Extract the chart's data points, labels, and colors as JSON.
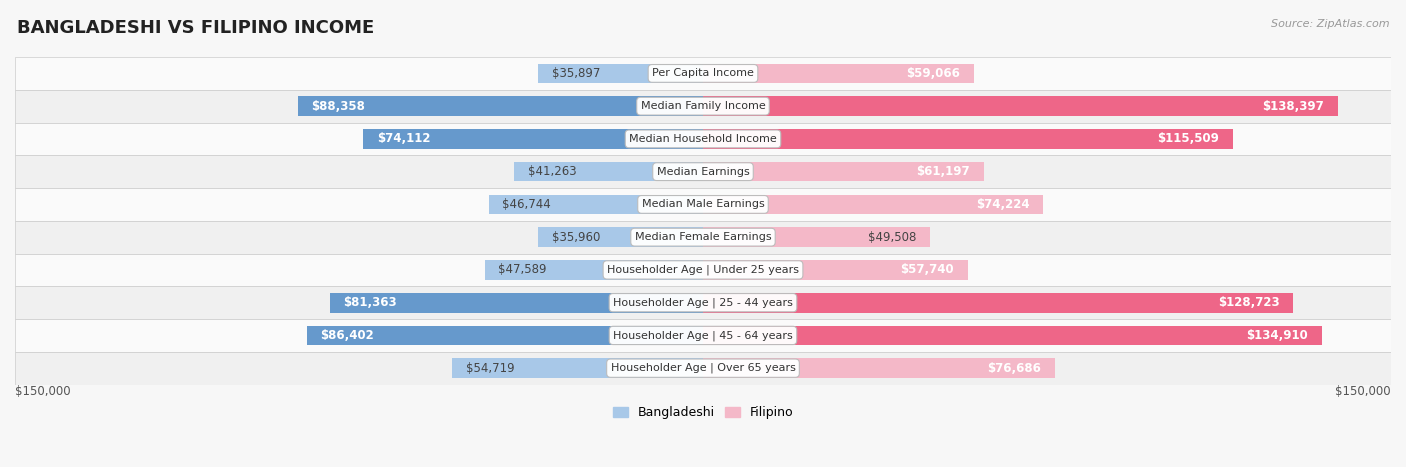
{
  "title": "BANGLADESHI VS FILIPINO INCOME",
  "source": "Source: ZipAtlas.com",
  "categories": [
    "Per Capita Income",
    "Median Family Income",
    "Median Household Income",
    "Median Earnings",
    "Median Male Earnings",
    "Median Female Earnings",
    "Householder Age | Under 25 years",
    "Householder Age | 25 - 44 years",
    "Householder Age | 45 - 64 years",
    "Householder Age | Over 65 years"
  ],
  "bangladeshi": [
    35897,
    88358,
    74112,
    41263,
    46744,
    35960,
    47589,
    81363,
    86402,
    54719
  ],
  "filipino": [
    59066,
    138397,
    115509,
    61197,
    74224,
    49508,
    57740,
    128723,
    134910,
    76686
  ],
  "bangladeshi_labels": [
    "$35,897",
    "$88,358",
    "$74,112",
    "$41,263",
    "$46,744",
    "$35,960",
    "$47,589",
    "$81,363",
    "$86,402",
    "$54,719"
  ],
  "filipino_labels": [
    "$59,066",
    "$138,397",
    "$115,509",
    "$61,197",
    "$74,224",
    "$49,508",
    "$57,740",
    "$128,723",
    "$134,910",
    "$76,686"
  ],
  "max_val": 150000,
  "bangladeshi_color_light": "#a8c8e8",
  "bangladeshi_color_dark": "#6699cc",
  "filipino_color_light": "#f4b8c8",
  "filipino_color_dark": "#ee6688",
  "bg_color": "#f7f7f7",
  "row_bg_even": "#f0f0f0",
  "row_bg_odd": "#fafafa",
  "bar_height": 0.6,
  "label_fontsize": 8.5,
  "legend_bangladeshi": "Bangladeshi",
  "legend_filipino": "Filipino",
  "bottom_label_left": "$150,000",
  "bottom_label_right": "$150,000",
  "bd_inside_threshold": 55000,
  "fl_inside_threshold": 55000
}
